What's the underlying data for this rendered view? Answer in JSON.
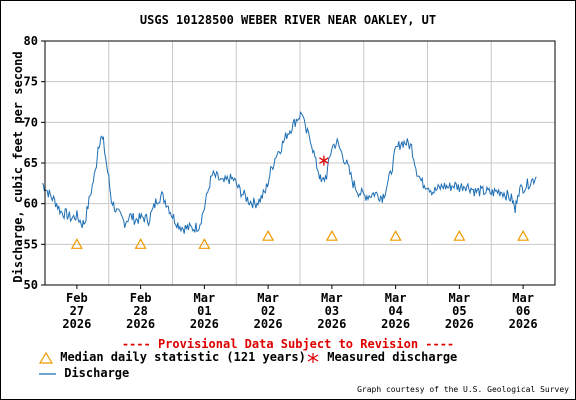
{
  "chart_data": {
    "type": "line",
    "title": "USGS 10128500 WEBER RIVER NEAR OAKLEY, UT",
    "ylabel": "Discharge, cubic feet per second",
    "xlabel": "",
    "ylim": [
      50,
      80
    ],
    "yticks": [
      50,
      55,
      60,
      65,
      70,
      75,
      80
    ],
    "xlim": [
      "2026-02-27T00:00",
      "2026-03-07T00:00"
    ],
    "x_ticks": [
      {
        "x": "2026-02-27T12:00",
        "label": [
          "Feb",
          "27",
          "2026"
        ]
      },
      {
        "x": "2026-02-28T12:00",
        "label": [
          "Feb",
          "28",
          "2026"
        ]
      },
      {
        "x": "2026-03-01T12:00",
        "label": [
          "Mar",
          "01",
          "2026"
        ]
      },
      {
        "x": "2026-03-02T12:00",
        "label": [
          "Mar",
          "02",
          "2026"
        ]
      },
      {
        "x": "2026-03-03T12:00",
        "label": [
          "Mar",
          "03",
          "2026"
        ]
      },
      {
        "x": "2026-03-04T12:00",
        "label": [
          "Mar",
          "04",
          "2026"
        ]
      },
      {
        "x": "2026-03-05T12:00",
        "label": [
          "Mar",
          "05",
          "2026"
        ]
      },
      {
        "x": "2026-03-06T12:00",
        "label": [
          "Mar",
          "06",
          "2026"
        ]
      }
    ],
    "grid": true,
    "series": [
      {
        "name": "Discharge",
        "color": "#1f6fb4",
        "points": [
          [
            "2026-02-26T23:00",
            62.5
          ],
          [
            "2026-02-27T02:00",
            61.0
          ],
          [
            "2026-02-27T04:00",
            60.2
          ],
          [
            "2026-02-27T06:00",
            59.0
          ],
          [
            "2026-02-27T08:00",
            58.7
          ],
          [
            "2026-02-27T10:00",
            58.2
          ],
          [
            "2026-02-27T12:00",
            58.5
          ],
          [
            "2026-02-27T14:00",
            57.5
          ],
          [
            "2026-02-27T15:00",
            57.8
          ],
          [
            "2026-02-27T17:00",
            61.0
          ],
          [
            "2026-02-27T19:00",
            64.0
          ],
          [
            "2026-02-27T20:00",
            67.0
          ],
          [
            "2026-02-27T21:00",
            68.3
          ],
          [
            "2026-02-27T22:00",
            67.5
          ],
          [
            "2026-02-28T00:00",
            63.0
          ],
          [
            "2026-02-28T01:00",
            60.5
          ],
          [
            "2026-02-28T03:00",
            59.0
          ],
          [
            "2026-02-28T06:00",
            57.7
          ],
          [
            "2026-02-28T08:00",
            58.5
          ],
          [
            "2026-02-28T10:00",
            58.0
          ],
          [
            "2026-02-28T13:00",
            58.3
          ],
          [
            "2026-02-28T15:00",
            58.0
          ],
          [
            "2026-02-28T17:00",
            59.5
          ],
          [
            "2026-02-28T18:00",
            60.5
          ],
          [
            "2026-02-28T20:00",
            61.0
          ],
          [
            "2026-02-28T22:00",
            60.0
          ],
          [
            "2026-03-01T00:00",
            58.5
          ],
          [
            "2026-03-01T02:00",
            57.5
          ],
          [
            "2026-03-01T04:00",
            57.0
          ],
          [
            "2026-03-01T06:00",
            57.0
          ],
          [
            "2026-03-01T08:00",
            57.0
          ],
          [
            "2026-03-01T10:00",
            57.3
          ],
          [
            "2026-03-01T12:00",
            59.5
          ],
          [
            "2026-03-01T14:00",
            62.5
          ],
          [
            "2026-03-01T15:00",
            63.5
          ],
          [
            "2026-03-01T17:00",
            63.2
          ],
          [
            "2026-03-01T19:00",
            62.5
          ],
          [
            "2026-03-01T21:00",
            63.0
          ],
          [
            "2026-03-01T23:00",
            63.0
          ],
          [
            "2026-03-02T01:00",
            61.8
          ],
          [
            "2026-03-02T03:00",
            61.0
          ],
          [
            "2026-03-02T05:00",
            60.3
          ],
          [
            "2026-03-02T07:00",
            60.0
          ],
          [
            "2026-03-02T09:00",
            60.5
          ],
          [
            "2026-03-02T11:00",
            61.5
          ],
          [
            "2026-03-02T13:00",
            64.0
          ],
          [
            "2026-03-02T15:00",
            66.0
          ],
          [
            "2026-03-02T17:00",
            67.0
          ],
          [
            "2026-03-02T19:00",
            68.5
          ],
          [
            "2026-03-02T21:00",
            69.5
          ],
          [
            "2026-03-02T23:00",
            70.5
          ],
          [
            "2026-03-03T01:00",
            71.2
          ],
          [
            "2026-03-03T02:00",
            69.0
          ],
          [
            "2026-03-03T04:00",
            68.0
          ],
          [
            "2026-03-03T06:00",
            65.0
          ],
          [
            "2026-03-03T07:00",
            64.0
          ],
          [
            "2026-03-03T08:00",
            62.5
          ],
          [
            "2026-03-03T10:00",
            63.5
          ],
          [
            "2026-03-03T12:00",
            67.0
          ],
          [
            "2026-03-03T14:00",
            67.5
          ],
          [
            "2026-03-03T16:00",
            66.0
          ],
          [
            "2026-03-03T18:00",
            64.5
          ],
          [
            "2026-03-03T20:00",
            62.5
          ],
          [
            "2026-03-03T22:00",
            61.5
          ],
          [
            "2026-03-04T00:00",
            61.0
          ],
          [
            "2026-03-04T02:00",
            61.0
          ],
          [
            "2026-03-04T04:00",
            61.3
          ],
          [
            "2026-03-04T06:00",
            61.0
          ],
          [
            "2026-03-04T07:00",
            60.8
          ],
          [
            "2026-03-04T08:00",
            61.5
          ],
          [
            "2026-03-04T10:00",
            63.5
          ],
          [
            "2026-03-04T12:00",
            66.5
          ],
          [
            "2026-03-04T14:00",
            67.5
          ],
          [
            "2026-03-04T16:00",
            67.5
          ],
          [
            "2026-03-04T18:00",
            67.0
          ],
          [
            "2026-03-04T20:00",
            64.0
          ],
          [
            "2026-03-04T22:00",
            62.5
          ],
          [
            "2026-03-05T00:00",
            62.3
          ],
          [
            "2026-03-05T02:00",
            61.5
          ],
          [
            "2026-03-05T04:00",
            61.8
          ],
          [
            "2026-03-05T06:00",
            62.2
          ],
          [
            "2026-03-05T08:00",
            62.0
          ],
          [
            "2026-03-05T10:00",
            62.3
          ],
          [
            "2026-03-05T12:00",
            62.0
          ],
          [
            "2026-03-05T14:00",
            62.3
          ],
          [
            "2026-03-05T16:00",
            62.0
          ],
          [
            "2026-03-05T18:00",
            61.5
          ],
          [
            "2026-03-05T20:00",
            61.5
          ],
          [
            "2026-03-05T22:00",
            61.5
          ],
          [
            "2026-03-06T00:00",
            61.3
          ],
          [
            "2026-03-06T02:00",
            61.5
          ],
          [
            "2026-03-06T04:00",
            61.5
          ],
          [
            "2026-03-06T06:00",
            61.0
          ],
          [
            "2026-03-06T08:00",
            60.5
          ],
          [
            "2026-03-06T09:00",
            59.0
          ],
          [
            "2026-03-06T10:00",
            61.5
          ],
          [
            "2026-03-06T12:00",
            62.0
          ],
          [
            "2026-03-06T14:00",
            62.5
          ],
          [
            "2026-03-06T16:00",
            63.0
          ],
          [
            "2026-03-06T17:00",
            63.3
          ]
        ]
      },
      {
        "name": "Median daily statistic (121 years)",
        "color": "#ee9900",
        "marker": "triangle",
        "points": [
          [
            "2026-02-27T12:00",
            55
          ],
          [
            "2026-02-28T12:00",
            55
          ],
          [
            "2026-03-01T12:00",
            55
          ],
          [
            "2026-03-02T12:00",
            56
          ],
          [
            "2026-03-03T12:00",
            56
          ],
          [
            "2026-03-04T12:00",
            56
          ],
          [
            "2026-03-05T12:00",
            56
          ],
          [
            "2026-03-06T12:00",
            56
          ]
        ]
      },
      {
        "name": "Measured discharge",
        "color": "#dd0000",
        "marker": "asterisk",
        "points": [
          [
            "2026-03-03T09:00",
            65.3
          ]
        ]
      }
    ],
    "notice": "---- Provisional Data Subject to Revision ----",
    "legend": [
      {
        "label": "Median daily statistic (121 years)",
        "marker": "triangle",
        "color": "#ee9900"
      },
      {
        "label": "Measured discharge",
        "marker": "asterisk",
        "color": "#dd0000"
      },
      {
        "label": "Discharge",
        "marker": "line",
        "color": "#1f6fb4"
      }
    ],
    "credit": "Graph courtesy of the U.S. Geological Survey"
  }
}
